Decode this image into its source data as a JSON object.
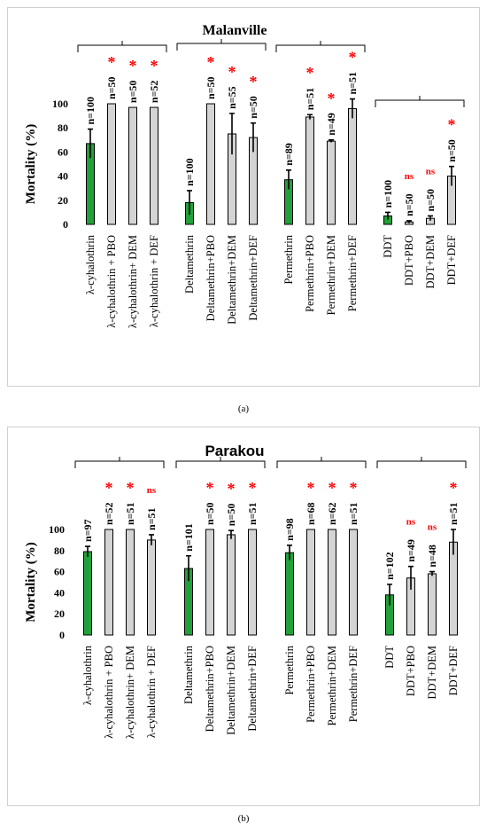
{
  "captions": [
    "(a)",
    "(b)"
  ],
  "colors": {
    "control": "#22a03a",
    "synergist": "#d4d4d4",
    "star": "#ff0000",
    "ns": "#ff0000"
  },
  "chart_data": [
    {
      "type": "bar",
      "title": "Malanville",
      "ylabel": "Mortality (%)",
      "ylim": [
        0,
        100
      ],
      "yticks": [
        0,
        20,
        40,
        60,
        80,
        100
      ],
      "groups": [
        {
          "categories": [
            "λ-cyhalothrin",
            "λ-cyhalothrin + PBO",
            "λ-cyhalothrin+ DEM",
            "λ-cyhalothrin + DEF"
          ],
          "values": [
            67,
            100,
            97,
            97
          ],
          "errors": [
            12,
            0,
            0,
            0
          ],
          "n_labels": [
            "n=100",
            "n=50",
            "n=50",
            "n=52"
          ],
          "marks": [
            "",
            "*",
            "*",
            "*"
          ]
        },
        {
          "categories": [
            "Deltamethrin",
            "Deltamethrin+PBO",
            "Deltamethrin+DEM",
            "Deltamethrin+DEF"
          ],
          "values": [
            18,
            100,
            75,
            72
          ],
          "errors": [
            10,
            0,
            17,
            12
          ],
          "n_labels": [
            "n=100",
            "n=50",
            "n=55",
            "n=50"
          ],
          "marks": [
            "",
            "*",
            "*",
            "*"
          ]
        },
        {
          "categories": [
            "Permethrin",
            "Permethrin+PBO",
            "Permethrin+DEM",
            "Permethrin+DEF"
          ],
          "values": [
            37,
            89,
            69,
            96
          ],
          "errors": [
            8,
            2,
            1,
            8
          ],
          "n_labels": [
            "n=89",
            "n=51",
            "n=49",
            "n=51"
          ],
          "marks": [
            "",
            "*",
            "*",
            "*"
          ]
        },
        {
          "categories": [
            "DDT",
            "DDT+PBO",
            "DDT+DEM",
            "DDT+DEF"
          ],
          "values": [
            7,
            2,
            5,
            40
          ],
          "errors": [
            3,
            1,
            2,
            8
          ],
          "n_labels": [
            "n=100",
            "n=50",
            "n=50",
            "n=50"
          ],
          "marks": [
            "",
            "ns",
            "ns",
            "*"
          ]
        }
      ]
    },
    {
      "type": "bar",
      "title": "Parakou",
      "ylabel": "Mortality (%)",
      "ylim": [
        0,
        100
      ],
      "yticks": [
        0,
        20,
        40,
        60,
        80,
        100
      ],
      "groups": [
        {
          "categories": [
            "λ-cyhalothrin",
            "λ-cyhalothrin + PBO",
            "λ-cyhalothrin+ DEM",
            "λ-cyhalothrin + DEF"
          ],
          "values": [
            79,
            100,
            100,
            90
          ],
          "errors": [
            5,
            0,
            0,
            5
          ],
          "n_labels": [
            "n=97",
            "n=52",
            "n=51",
            "n=51"
          ],
          "marks": [
            "",
            "*",
            "*",
            "ns"
          ]
        },
        {
          "categories": [
            "Deltamethrin",
            "Deltamethrin+PBO",
            "Deltamethrin+DEM",
            "Deltamethrin+DEF"
          ],
          "values": [
            63,
            100,
            95,
            100
          ],
          "errors": [
            12,
            0,
            4,
            0
          ],
          "n_labels": [
            "n=101",
            "n=50",
            "n=50",
            "n=51"
          ],
          "marks": [
            "",
            "*",
            "*",
            "*"
          ]
        },
        {
          "categories": [
            "Permethrin",
            "Permethrin+PBO",
            "Permethrin+DEM",
            "Permethrin+DEF"
          ],
          "values": [
            78,
            100,
            100,
            100
          ],
          "errors": [
            7,
            0,
            0,
            0
          ],
          "n_labels": [
            "n=98",
            "n=68",
            "n=62",
            "n=51"
          ],
          "marks": [
            "",
            "*",
            "*",
            "*"
          ]
        },
        {
          "categories": [
            "DDT",
            "DDT+PBO",
            "DDT+DEM",
            "DDT+DEF"
          ],
          "values": [
            38,
            54,
            58,
            88
          ],
          "errors": [
            10,
            11,
            2,
            12
          ],
          "n_labels": [
            "n=102",
            "n=49",
            "n=48",
            "n=51"
          ],
          "marks": [
            "",
            "ns",
            "ns",
            "*"
          ]
        }
      ]
    }
  ]
}
